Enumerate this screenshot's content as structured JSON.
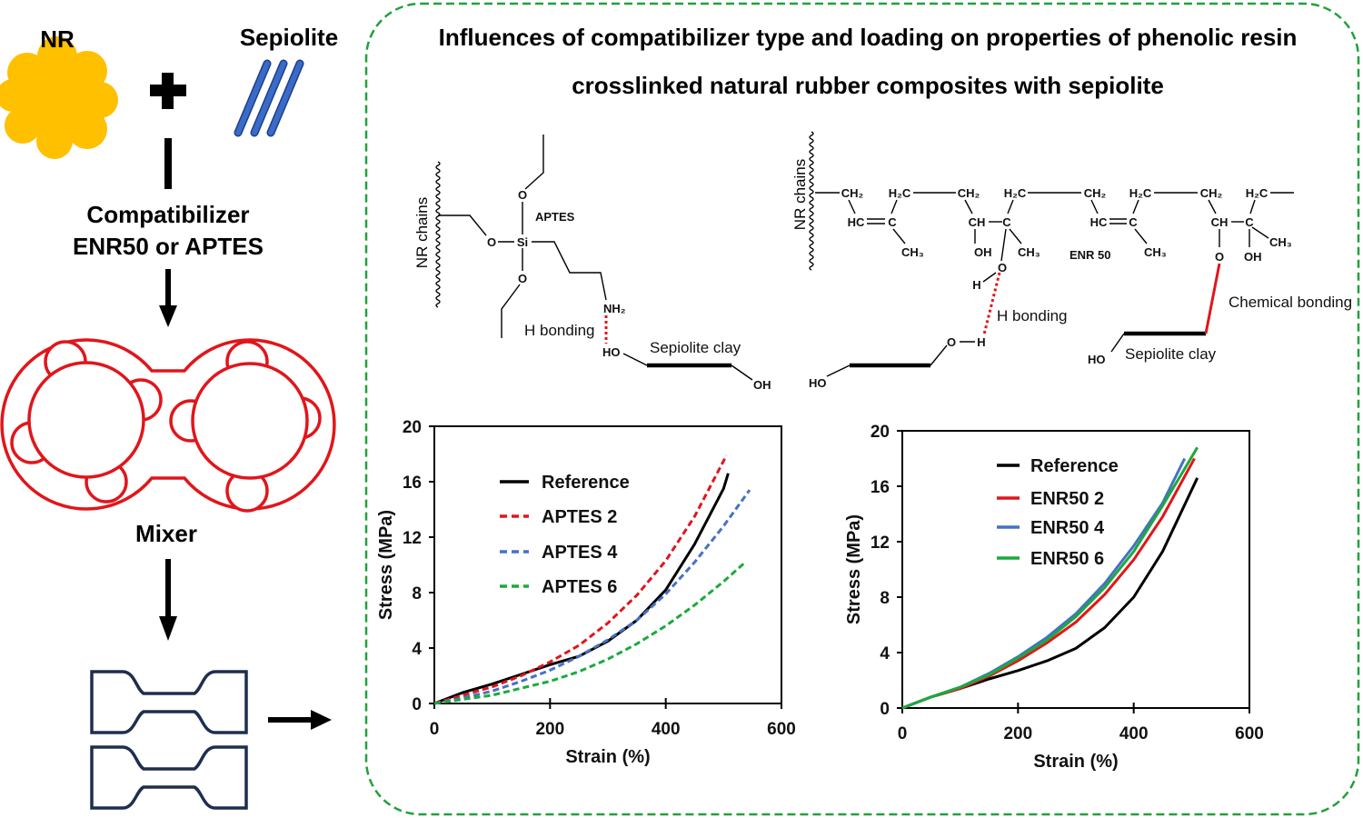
{
  "title": {
    "line1": "Influences of compatibilizer type and loading on properties of phenolic resin",
    "line2": "crosslinked natural rubber composites with sepiolite"
  },
  "workflow": {
    "nr_label": "NR",
    "sepiolite_label": "Sepiolite",
    "compatibilizer_line1": "Compatibilizer",
    "compatibilizer_line2": "ENR50 or APTES",
    "mixer_label": "Mixer"
  },
  "colors": {
    "nr": "#FFC000",
    "sepiolite": "#3A6BC8",
    "mixer": "#E0161B",
    "dumbbell": "#1E2E4E",
    "frame": "#22A03C",
    "bond": "#E0161B"
  },
  "aptes_scheme": {
    "nr_chains": "NR chains",
    "o_top": "O",
    "si": "Si",
    "o_left": "O",
    "o_bottom": "O",
    "name": "APTES",
    "nh2": "NH₂",
    "h_bonding": "H bonding",
    "ho": "HO",
    "oh": "OH",
    "clay": "Sepiolite  clay"
  },
  "enr_scheme": {
    "nr_chains": "NR chains",
    "row1": [
      "CH₂",
      "H₂C",
      "CH₂",
      "H₂C",
      "CH₂",
      "H₂C",
      "CH₂",
      "H₂C"
    ],
    "row2": [
      "HC",
      "C",
      "CH",
      "C",
      "HC",
      "C",
      "CH",
      "C"
    ],
    "ch3_a": "CH₃",
    "oh_a": "OH",
    "ch3_b": "CH₃",
    "name": "ENR 50",
    "ch3_c": "CH₃",
    "o_ring": "O",
    "oh_b": "OH",
    "ch3_d": "CH₃",
    "o_h": "O",
    "h_h": "H",
    "h_bonding": "H bonding",
    "clay_o": "O",
    "clay_h": "H",
    "clay_ho": "HO",
    "chemical_bonding": "Chemical bonding",
    "clay2_ho": "HO",
    "clay2": "Sepiolite  clay"
  },
  "chart_data": [
    {
      "type": "line",
      "xlabel": "Strain (%)",
      "ylabel": "Stress (MPa)",
      "xlim": [
        0,
        600
      ],
      "ylim": [
        0,
        20
      ],
      "xticks": [
        "0",
        "200",
        "400",
        "600"
      ],
      "yticks": [
        "0",
        "4",
        "8",
        "12",
        "16",
        "20"
      ],
      "legend_position": "top-left",
      "series": [
        {
          "name": "Reference",
          "color": "#000000",
          "dash": false,
          "x": [
            0,
            50,
            100,
            150,
            200,
            250,
            300,
            350,
            400,
            450,
            500,
            508
          ],
          "y": [
            0,
            0.8,
            1.4,
            2.1,
            2.8,
            3.4,
            4.5,
            6.0,
            8.2,
            11.5,
            15.5,
            16.6
          ]
        },
        {
          "name": "APTES 2",
          "color": "#E0161B",
          "dash": true,
          "x": [
            0,
            50,
            100,
            150,
            200,
            250,
            300,
            350,
            400,
            450,
            505
          ],
          "y": [
            0,
            0.6,
            1.2,
            2.0,
            3.0,
            4.2,
            5.8,
            7.8,
            10.3,
            13.5,
            17.9
          ]
        },
        {
          "name": "APTES 4",
          "color": "#4472C4",
          "dash": true,
          "x": [
            0,
            50,
            100,
            150,
            200,
            250,
            300,
            350,
            400,
            450,
            500,
            545
          ],
          "y": [
            0,
            0.4,
            0.9,
            1.6,
            2.4,
            3.4,
            4.6,
            6.0,
            7.9,
            10.2,
            12.8,
            15.4
          ]
        },
        {
          "name": "APTES 6",
          "color": "#1BAA3C",
          "dash": true,
          "x": [
            0,
            50,
            100,
            150,
            200,
            250,
            300,
            350,
            400,
            450,
            500,
            535
          ],
          "y": [
            0,
            0.3,
            0.6,
            1.1,
            1.6,
            2.3,
            3.2,
            4.3,
            5.6,
            7.1,
            8.8,
            10.1
          ]
        }
      ]
    },
    {
      "type": "line",
      "xlabel": "Strain (%)",
      "ylabel": "Stress (MPa)",
      "xlim": [
        0,
        600
      ],
      "ylim": [
        0,
        20
      ],
      "xticks": [
        "0",
        "200",
        "400",
        "600"
      ],
      "yticks": [
        "0",
        "4",
        "8",
        "12",
        "16",
        "20"
      ],
      "legend_position": "top-left",
      "series": [
        {
          "name": "Reference",
          "color": "#000000",
          "dash": false,
          "x": [
            0,
            50,
            100,
            150,
            200,
            250,
            300,
            350,
            400,
            450,
            510
          ],
          "y": [
            0,
            0.8,
            1.4,
            2.1,
            2.7,
            3.4,
            4.3,
            5.8,
            8.0,
            11.3,
            16.6
          ]
        },
        {
          "name": "ENR50 2",
          "color": "#E0161B",
          "dash": false,
          "x": [
            0,
            50,
            100,
            150,
            200,
            250,
            300,
            350,
            400,
            450,
            505
          ],
          "y": [
            0,
            0.8,
            1.4,
            2.3,
            3.4,
            4.7,
            6.2,
            8.2,
            10.7,
            13.8,
            18.0
          ]
        },
        {
          "name": "ENR50 4",
          "color": "#4472C4",
          "dash": false,
          "x": [
            0,
            50,
            100,
            150,
            200,
            250,
            300,
            350,
            400,
            450,
            488
          ],
          "y": [
            0,
            0.8,
            1.5,
            2.5,
            3.7,
            5.1,
            6.8,
            9.0,
            11.7,
            14.8,
            18.0
          ]
        },
        {
          "name": "ENR50 6",
          "color": "#1BAA3C",
          "dash": false,
          "x": [
            0,
            50,
            100,
            150,
            200,
            250,
            300,
            350,
            400,
            450,
            510
          ],
          "y": [
            0,
            0.8,
            1.5,
            2.4,
            3.6,
            4.9,
            6.6,
            8.7,
            11.3,
            14.6,
            18.8
          ]
        }
      ]
    }
  ]
}
